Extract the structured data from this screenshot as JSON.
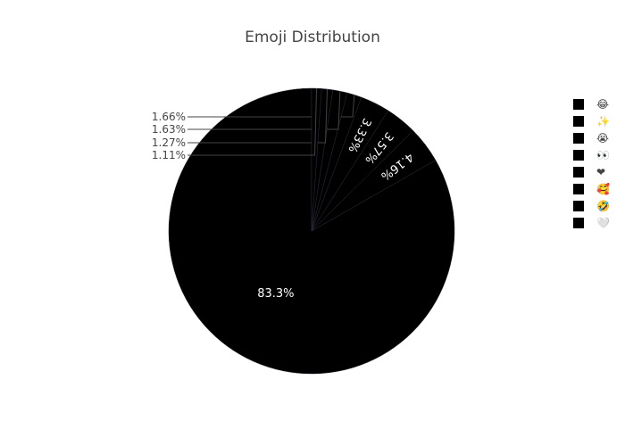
{
  "chart_data": {
    "type": "pie",
    "title": "Emoji Distribution",
    "slice_color": "#000000",
    "slice_border_color": "#2a2a3a",
    "inside_label_color": "#ffffff",
    "outside_label_color": "#444444",
    "legend_position": "right",
    "slices": [
      {
        "label": "😂",
        "value": 83.3,
        "text": "83.3%"
      },
      {
        "label": "✨",
        "value": 4.16,
        "text": "4.16%"
      },
      {
        "label": "😭",
        "value": 3.57,
        "text": "3.57%"
      },
      {
        "label": "👀",
        "value": 3.33,
        "text": "3.33%"
      },
      {
        "label": "❤",
        "value": 1.66,
        "text": "1.66%"
      },
      {
        "label": "🥰",
        "value": 1.63,
        "text": "1.63%"
      },
      {
        "label": "🤣",
        "value": 1.27,
        "text": "1.27%"
      },
      {
        "label": "🤍",
        "value": 1.11,
        "text": "1.11%"
      }
    ]
  }
}
